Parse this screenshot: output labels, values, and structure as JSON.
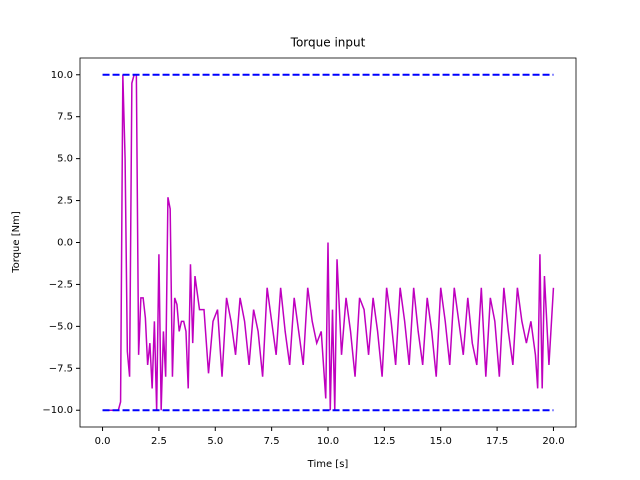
{
  "chart_data": {
    "type": "line",
    "title": "Torque input",
    "xlabel": "Time [s]",
    "ylabel": "Torque [Nm]",
    "xlim": [
      -1.0,
      21.0
    ],
    "ylim": [
      -11.0,
      11.0
    ],
    "xticks": [
      {
        "value": 0,
        "label": "0.0"
      },
      2.5,
      {
        "value": 5,
        "label": "5.0"
      },
      7.5,
      {
        "value": 10,
        "label": "10.0"
      },
      12.5,
      {
        "value": 15,
        "label": "15.0"
      },
      17.5,
      {
        "value": 20,
        "label": "20.0"
      }
    ],
    "yticks": [
      {
        "value": -10,
        "label": "−10.0"
      },
      {
        "value": -7.5,
        "label": "−7.5"
      },
      {
        "value": -5,
        "label": "−5.0"
      },
      {
        "value": -2.5,
        "label": "−2.5"
      },
      {
        "value": 0,
        "label": "0.0"
      },
      2.5,
      {
        "value": 5,
        "label": "5.0"
      },
      7.5,
      {
        "value": 10,
        "label": "10.0"
      }
    ],
    "series": [
      {
        "color": "#bf00bf",
        "dashed": false,
        "x": [
          0,
          0.1,
          0.2,
          0.3,
          0.4,
          0.5,
          0.6,
          0.7,
          0.8,
          0.9,
          1.0,
          1.1,
          1.2,
          1.3,
          1.4,
          1.5,
          1.6,
          1.7,
          1.8,
          1.9,
          2.0,
          2.1,
          2.2,
          2.3,
          2.4,
          2.5,
          2.6,
          2.7,
          2.8,
          2.9,
          3.0,
          3.1,
          3.2,
          3.3,
          3.4,
          3.5,
          3.6,
          3.7,
          3.8,
          3.9,
          4.0,
          4.1,
          4.3,
          4.5,
          4.7,
          4.9,
          5.1,
          5.3,
          5.5,
          5.7,
          5.9,
          6.1,
          6.3,
          6.5,
          6.7,
          6.9,
          7.1,
          7.3,
          7.5,
          7.7,
          7.9,
          8.1,
          8.3,
          8.5,
          8.7,
          8.9,
          9.1,
          9.3,
          9.5,
          9.7,
          9.9,
          10.0,
          10.1,
          10.2,
          10.3,
          10.4,
          10.6,
          10.8,
          11.0,
          11.2,
          11.4,
          11.6,
          11.8,
          12.0,
          12.2,
          12.4,
          12.6,
          12.8,
          13.0,
          13.2,
          13.4,
          13.6,
          13.8,
          14.0,
          14.2,
          14.4,
          14.6,
          14.8,
          15.0,
          15.2,
          15.4,
          15.6,
          15.8,
          16.0,
          16.2,
          16.4,
          16.6,
          16.8,
          17.0,
          17.2,
          17.4,
          17.6,
          17.8,
          18.0,
          18.2,
          18.4,
          18.6,
          18.8,
          19.0,
          19.2,
          19.3,
          19.4,
          19.5,
          19.6,
          19.8,
          20.0
        ],
        "values": [
          -10,
          -10,
          -10,
          -10,
          -10,
          -10,
          -10,
          -10,
          -9.5,
          10,
          5,
          -6.5,
          -8,
          9.5,
          10,
          10,
          -6.7,
          -3.3,
          -3.3,
          -4.5,
          -7.3,
          -6,
          -8.7,
          -4.7,
          -10,
          -0.7,
          -10,
          -5.3,
          -8,
          2.7,
          2,
          -8,
          -3.3,
          -3.7,
          -5.3,
          -4.7,
          -4.7,
          -5.3,
          -8.7,
          -1.3,
          -6,
          -2,
          -4,
          -4,
          -7.8,
          -4.7,
          -4,
          -8,
          -3.3,
          -4.7,
          -6.7,
          -3.3,
          -4.7,
          -7.3,
          -4,
          -5.3,
          -8,
          -2.7,
          -4.7,
          -6.7,
          -2.7,
          -5.3,
          -7.3,
          -3.3,
          -5.3,
          -7.3,
          -2.7,
          -4.7,
          -6,
          -5.3,
          -9.3,
          0,
          -10,
          -4,
          -10,
          -1,
          -6.7,
          -3.3,
          -5.3,
          -8,
          -3.3,
          -4,
          -6.7,
          -3.3,
          -5.3,
          -8,
          -2.7,
          -4.7,
          -7.3,
          -2.7,
          -4.7,
          -7.3,
          -2.7,
          -5.3,
          -7.3,
          -3.3,
          -5.3,
          -8,
          -2.7,
          -4.7,
          -7.3,
          -2.7,
          -4.7,
          -6.7,
          -3.3,
          -6,
          -7.3,
          -2.7,
          -8,
          -3.3,
          -4.7,
          -8,
          -2.7,
          -5.3,
          -7.3,
          -2.7,
          -4.7,
          -6,
          -4.7,
          -6.7,
          -8.7,
          -0.7,
          -8.7,
          -2,
          -7.3,
          -2.7
        ]
      },
      {
        "color": "#0000ff",
        "dashed": true,
        "x": [
          0,
          20
        ],
        "values": [
          10,
          10
        ]
      },
      {
        "color": "#0000ff",
        "dashed": true,
        "x": [
          0,
          20
        ],
        "values": [
          -10,
          -10
        ]
      }
    ]
  }
}
